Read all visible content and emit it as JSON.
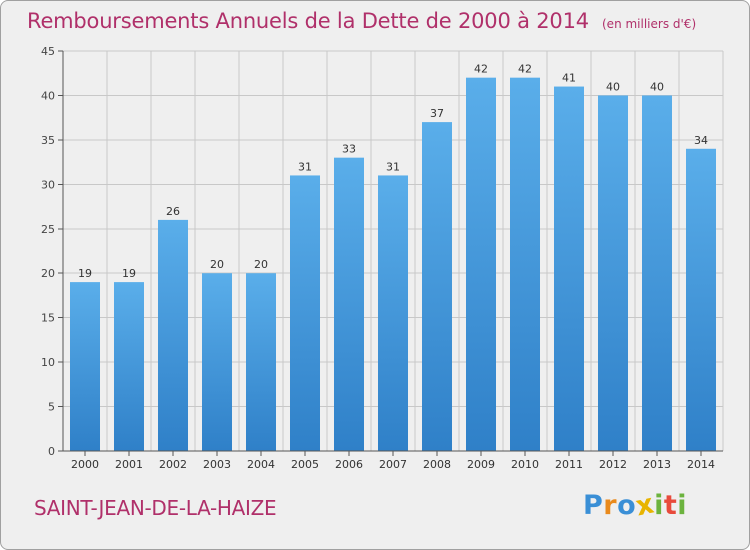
{
  "chart_data": {
    "type": "bar",
    "title": "Remboursements Annuels de la Dette de 2000 à 2014",
    "subtitle": "(en milliers d'€)",
    "categories": [
      "2000",
      "2001",
      "2002",
      "2003",
      "2004",
      "2005",
      "2006",
      "2007",
      "2008",
      "2009",
      "2010",
      "2011",
      "2012",
      "2013",
      "2014"
    ],
    "values": [
      19,
      19,
      26,
      20,
      20,
      31,
      33,
      31,
      37,
      42,
      42,
      41,
      40,
      40,
      34
    ],
    "xlabel": "",
    "ylabel": "",
    "ylim": [
      0,
      45
    ],
    "yticks": [
      0,
      5,
      10,
      15,
      20,
      25,
      30,
      35,
      40,
      45
    ],
    "grid": true,
    "data_labels": true,
    "colors": {
      "bar_top": "#5aaeea",
      "bar_bottom": "#2f80c8",
      "title": "#b0306a",
      "grid": "#c8c8c8",
      "background": "#efefef"
    }
  },
  "commune": "SAINT-JEAN-DE-LA-HAIZE",
  "brand": {
    "name": "Proxiti",
    "letters": [
      "P",
      "r",
      "o",
      "x",
      "i",
      "t",
      "i"
    ],
    "letter_colors": [
      "#3a8fd6",
      "#e98a1c",
      "#3a8fd6",
      "#e8b400",
      "#6cb33e",
      "#e84b3c",
      "#6cb33e"
    ]
  }
}
